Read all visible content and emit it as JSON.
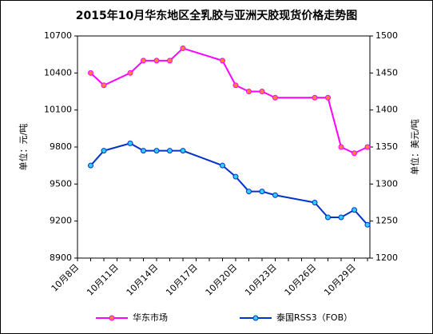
{
  "chart_data": {
    "type": "line",
    "title": "2015年10月华东地区全乳胶与亚洲天胶现货价格走势图",
    "y_label": "单位：元/吨",
    "y2_label": "单位：美元/吨",
    "categories": [
      "10月8日",
      null,
      null,
      "10月11日",
      null,
      null,
      "10月14日",
      null,
      null,
      "10月17日",
      null,
      null,
      "10月20日",
      null,
      null,
      "10月23日",
      null,
      null,
      "10月26日",
      null,
      null,
      "10月29日",
      null
    ],
    "series": [
      {
        "name": "华东市场",
        "color": "#ff00ff",
        "marker_color": "#ff8040",
        "axis": "y",
        "values": [
          null,
          10400,
          10300,
          null,
          10400,
          10500,
          10500,
          10500,
          10600,
          null,
          null,
          10500,
          10300,
          10250,
          10250,
          10200,
          null,
          null,
          10200,
          10200,
          9800,
          9750,
          9800
        ]
      },
      {
        "name": "泰国RSS3（FOB）",
        "color": "#0033cc",
        "marker_color": "#33ccff",
        "axis": "y2",
        "values": [
          null,
          1325,
          1345,
          null,
          1355,
          1345,
          1345,
          1345,
          1345,
          null,
          null,
          1325,
          1310,
          1290,
          1290,
          1285,
          null,
          null,
          1275,
          1255,
          1255,
          1265,
          1245
        ]
      }
    ],
    "ylim": [
      8900,
      10700
    ],
    "yticks": [
      8900,
      9200,
      9500,
      9800,
      10100,
      10400,
      10700
    ],
    "y2lim": [
      1200,
      1500
    ],
    "y2ticks": [
      1200,
      1250,
      1300,
      1350,
      1400,
      1450,
      1500
    ],
    "legend": "bottom"
  }
}
